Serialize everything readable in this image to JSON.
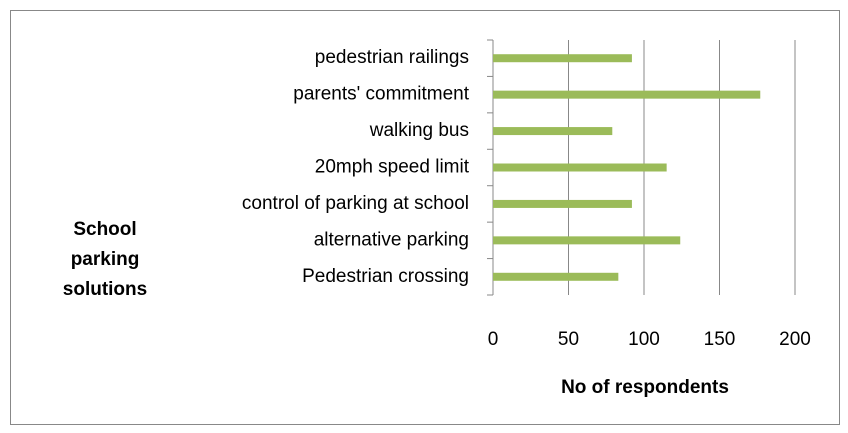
{
  "chart_data": {
    "type": "bar",
    "orientation": "horizontal",
    "categories": [
      "pedestrian railings",
      "parents' commitment",
      "walking bus",
      "20mph speed limit",
      "control of parking at school",
      "alternative parking",
      "Pedestrian crossing"
    ],
    "values": [
      92,
      177,
      79,
      115,
      92,
      124,
      83
    ],
    "color": "#9bbb59",
    "xlim": [
      0,
      200
    ],
    "xticks": [
      0,
      50,
      100,
      150,
      200
    ],
    "grid": true,
    "x_label": "No of respondents",
    "y_label": "School parking solutions"
  }
}
